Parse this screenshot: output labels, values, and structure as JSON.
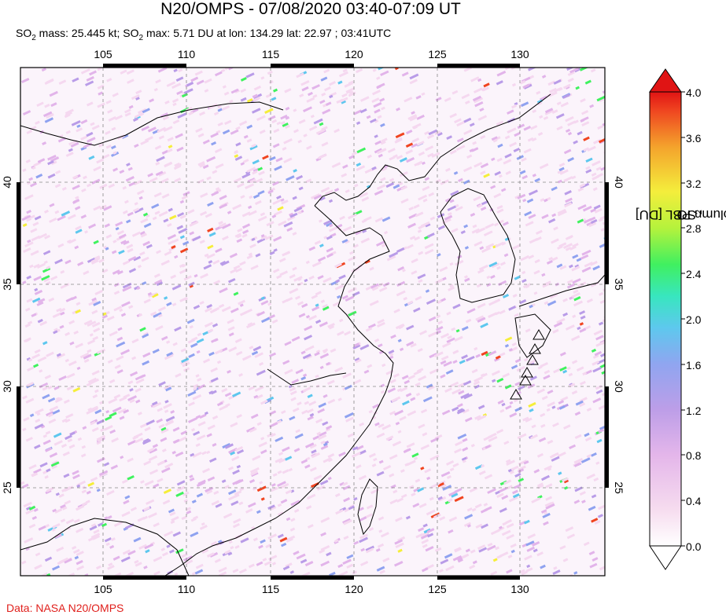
{
  "title": "N20/OMPS - 07/08/2020 03:40-07:09 UT",
  "subtitle": {
    "mass_prefix": "SO",
    "mass_sub": "2",
    "mass_text": " mass: 25.445 kt; SO",
    "max_sub": "2",
    "max_text": " max: 5.71 DU at lon: 134.29 lat: 22.97 ; 03:41UTC"
  },
  "credit": "Data: NASA N20/OMPS",
  "map": {
    "lon_ticks": [
      "105",
      "110",
      "115",
      "120",
      "125",
      "130"
    ],
    "lat_ticks": [
      "40",
      "35",
      "30",
      "25"
    ],
    "lon_range": [
      100.2,
      135.3
    ],
    "lat_range": [
      20.2,
      45.5
    ],
    "grid": "dashed",
    "volcano_markers": 6
  },
  "colorbar": {
    "label_prefix": "SO",
    "label_sub": "2",
    "label_suffix": " column PBL [DU]",
    "ticks": [
      "4.0",
      "3.6",
      "3.2",
      "2.8",
      "2.4",
      "2.0",
      "1.6",
      "1.2",
      "0.8",
      "0.4",
      "0.0"
    ],
    "range": [
      0.0,
      4.0
    ],
    "colors": [
      "#ffffff",
      "#f5d8f0",
      "#e2b4ea",
      "#b99ce8",
      "#8fa2f0",
      "#5dc7ee",
      "#36e6c0",
      "#3ff25e",
      "#b4f23a",
      "#f5ee3a",
      "#f5a22a",
      "#f04420",
      "#e01414"
    ]
  }
}
